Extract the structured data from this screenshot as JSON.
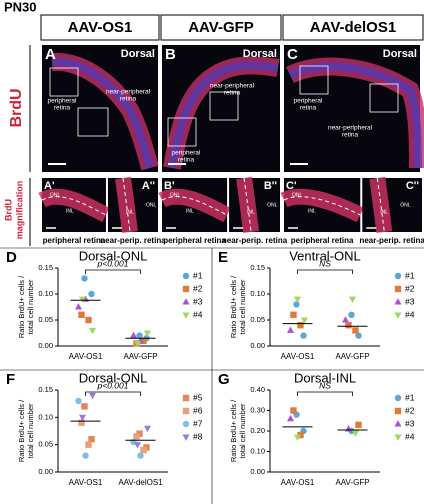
{
  "figure_label": "PN30",
  "columns": [
    "AAV-OS1",
    "AAV-GFP",
    "AAV-delOS1"
  ],
  "rows": [
    [
      "BrdU"
    ],
    [
      "BrdU",
      "magnification"
    ]
  ],
  "image_panels": [
    {
      "letter": "A",
      "caption": "Dorsal",
      "labels": [
        [
          "peripheral",
          "retina"
        ],
        [
          "near-peripheral",
          "retina"
        ]
      ]
    },
    {
      "letter": "B",
      "caption": "Dorsal",
      "labels": [
        [
          "peripheral",
          "retina"
        ],
        [
          "near-peripheral",
          "retina"
        ]
      ]
    },
    {
      "letter": "C",
      "caption": "Dorsal",
      "labels": [
        [
          "peripheral",
          "retina"
        ],
        [
          "near-peripheral",
          "retina"
        ]
      ]
    }
  ],
  "magnification": [
    {
      "letters": [
        "A'",
        "A''"
      ],
      "captions": [
        "peripheral retina",
        "near-perip. retina"
      ],
      "layers": [
        "ONL",
        "INL"
      ]
    },
    {
      "letters": [
        "B'",
        "B''"
      ],
      "captions": [
        "peripheral retina",
        "near-perip. retina"
      ],
      "layers": [
        "ONL",
        "INL"
      ]
    },
    {
      "letters": [
        "C'",
        "C''"
      ],
      "captions": [
        "peripheral retina",
        "near-perip. retina"
      ],
      "layers": [
        "ONL",
        "INL"
      ]
    }
  ],
  "chart_data": [
    {
      "type": "scatter",
      "panel": "D",
      "title": "Dorsal-ONL",
      "ylabel": [
        "Ratio BrdU+ cells /",
        "total cell number"
      ],
      "annotation": "p<0.001",
      "categories": [
        "AAV-OS1",
        "AAV-GFP"
      ],
      "means": [
        0.088,
        0.015
      ],
      "ylim": [
        0,
        0.15
      ],
      "yticks": [
        {
          "value": 0,
          "label": "0.00"
        },
        {
          "value": 0.05,
          "label": "0.05"
        },
        {
          "value": 0.1,
          "label": "0.10"
        },
        {
          "value": 0.15,
          "label": "0.15"
        }
      ],
      "series": [
        {
          "name": "#1",
          "color": "#5aa7e0",
          "marker": "circle",
          "x": [
            "AAV-OS1",
            "AAV-OS1",
            "AAV-GFP",
            "AAV-GFP"
          ],
          "values": [
            0.13,
            0.1,
            0.02,
            0.015
          ]
        },
        {
          "name": "#2",
          "color": "#e07a3c",
          "marker": "square",
          "x": [
            "AAV-OS1",
            "AAV-OS1",
            "AAV-GFP",
            "AAV-GFP"
          ],
          "values": [
            0.06,
            0.05,
            0.005,
            0.01
          ]
        },
        {
          "name": "#3",
          "color": "#b04fd0",
          "marker": "triangle-up",
          "x": [
            "AAV-OS1",
            "AAV-OS1",
            "AAV-GFP",
            "AAV-GFP"
          ],
          "values": [
            0.075,
            0.09,
            0.02,
            0.01
          ]
        },
        {
          "name": "#4",
          "color": "#9fd860",
          "marker": "triangle-down",
          "x": [
            "AAV-OS1",
            "AAV-OS1",
            "AAV-GFP",
            "AAV-GFP"
          ],
          "values": [
            0.03,
            0.09,
            0.025,
            0.005
          ]
        }
      ]
    },
    {
      "type": "scatter",
      "panel": "E",
      "title": "Ventral-ONL",
      "ylabel": [
        "Ratio BrdU+ cells /",
        "total cell number"
      ],
      "annotation": "NS",
      "categories": [
        "AAV-OS1",
        "AAV-GFP"
      ],
      "means": [
        0.043,
        0.038
      ],
      "ylim": [
        0,
        0.15
      ],
      "yticks": [
        {
          "value": 0,
          "label": "0.00"
        },
        {
          "value": 0.05,
          "label": "0.05"
        },
        {
          "value": 0.1,
          "label": "0.10"
        },
        {
          "value": 0.15,
          "label": "0.15"
        }
      ],
      "series": [
        {
          "name": "#1",
          "color": "#5aa7e0",
          "marker": "circle",
          "x": [
            "AAV-OS1",
            "AAV-OS1",
            "AAV-GFP",
            "AAV-GFP"
          ],
          "values": [
            0.08,
            0.02,
            0.06,
            0.02
          ]
        },
        {
          "name": "#2",
          "color": "#e07a3c",
          "marker": "square",
          "x": [
            "AAV-OS1",
            "AAV-OS1",
            "AAV-GFP",
            "AAV-GFP"
          ],
          "values": [
            0.06,
            0.04,
            0.04,
            0.03
          ]
        },
        {
          "name": "#3",
          "color": "#b04fd0",
          "marker": "triangle-up",
          "x": [
            "AAV-OS1",
            "AAV-GFP"
          ],
          "values": [
            0.03,
            0.05
          ]
        },
        {
          "name": "#4",
          "color": "#9fd860",
          "marker": "triangle-down",
          "x": [
            "AAV-OS1",
            "AAV-OS1",
            "AAV-GFP"
          ],
          "values": [
            0.09,
            0.05,
            0.09
          ]
        }
      ]
    },
    {
      "type": "scatter",
      "panel": "F",
      "title": "Dorsal-ONL",
      "ylabel": [
        "Ratio BrdU+ cells /",
        "total cell number"
      ],
      "annotation": "p<0.001",
      "categories": [
        "AAV-OS1",
        "AAV-delOS1"
      ],
      "means": [
        0.093,
        0.058
      ],
      "ylim": [
        0,
        0.15
      ],
      "yticks": [
        {
          "value": 0,
          "label": "0.00"
        },
        {
          "value": 0.05,
          "label": "0.05"
        },
        {
          "value": 0.1,
          "label": "0.10"
        },
        {
          "value": 0.15,
          "label": "0.15"
        }
      ],
      "series": [
        {
          "name": "#5",
          "color": "#e8845a",
          "marker": "square",
          "x": [
            "AAV-OS1",
            "AAV-OS1",
            "AAV-delOS1",
            "AAV-delOS1"
          ],
          "values": [
            0.12,
            0.06,
            0.07,
            0.045
          ]
        },
        {
          "name": "#6",
          "color": "#e6a07a",
          "marker": "square",
          "x": [
            "AAV-OS1",
            "AAV-OS1",
            "AAV-delOS1",
            "AAV-delOS1"
          ],
          "values": [
            0.09,
            0.05,
            0.065,
            0.04
          ]
        },
        {
          "name": "#7",
          "color": "#7fbfe6",
          "marker": "circle",
          "x": [
            "AAV-OS1",
            "AAV-OS1",
            "AAV-delOS1",
            "AAV-delOS1"
          ],
          "values": [
            0.13,
            0.03,
            0.055,
            0.03
          ]
        },
        {
          "name": "#8",
          "color": "#9a7ad8",
          "marker": "triangle-down",
          "x": [
            "AAV-OS1",
            "AAV-OS1",
            "AAV-delOS1",
            "AAV-delOS1"
          ],
          "values": [
            0.14,
            0.1,
            0.08,
            0.05
          ]
        }
      ]
    },
    {
      "type": "scatter",
      "panel": "G",
      "title": "Dorsal-INL",
      "ylabel": [
        "Ratio BrdU+ cells /",
        "total cell number"
      ],
      "annotation": "NS",
      "categories": [
        "AAV-OS1",
        "AAV-GFP"
      ],
      "means": [
        0.22,
        0.205
      ],
      "ylim": [
        0,
        0.4
      ],
      "yticks": [
        {
          "value": 0,
          "label": "0.00"
        },
        {
          "value": 0.1,
          "label": "0.10"
        },
        {
          "value": 0.2,
          "label": "0.20"
        },
        {
          "value": 0.3,
          "label": "0.30"
        },
        {
          "value": 0.4,
          "label": "0.40"
        }
      ],
      "series": [
        {
          "name": "#1",
          "color": "#5aa7e0",
          "marker": "circle",
          "x": [
            "AAV-OS1",
            "AAV-OS1",
            "AAV-GFP"
          ],
          "values": [
            0.28,
            0.2,
            0.2
          ]
        },
        {
          "name": "#2",
          "color": "#e07a3c",
          "marker": "square",
          "x": [
            "AAV-OS1",
            "AAV-OS1",
            "AAV-GFP"
          ],
          "values": [
            0.3,
            0.18,
            0.23
          ]
        },
        {
          "name": "#3",
          "color": "#b04fd0",
          "marker": "triangle-up",
          "x": [
            "AAV-OS1",
            "AAV-GFP"
          ],
          "values": [
            0.26,
            0.21
          ]
        },
        {
          "name": "#4",
          "color": "#9fd860",
          "marker": "triangle-down",
          "x": [
            "AAV-OS1",
            "AAV-GFP"
          ],
          "values": [
            0.17,
            0.19
          ]
        }
      ]
    }
  ]
}
